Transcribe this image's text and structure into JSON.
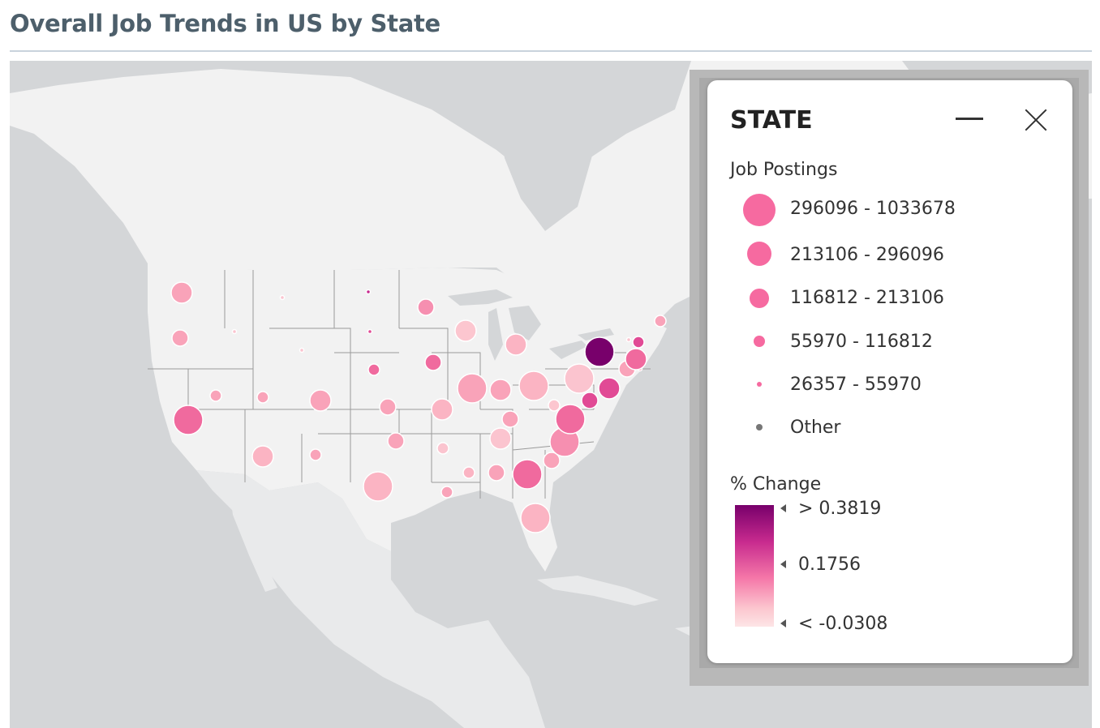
{
  "title": "Overall Job Trends in US by State",
  "legend": {
    "title": "STATE",
    "size_section": "Job Postings",
    "size_bins": [
      {
        "label": "296096 - 1033678"
      },
      {
        "label": "213106 - 296096"
      },
      {
        "label": "116812 - 213106"
      },
      {
        "label": "55970 - 116812"
      },
      {
        "label": "26357 - 55970"
      },
      {
        "label": "Other"
      }
    ],
    "color_section": "% Change",
    "color_ticks": {
      "high": "> 0.3819",
      "mid": "0.1756",
      "low": "< -0.0308"
    },
    "colors": {
      "high": "#78006b",
      "mid": "#f066a0",
      "low": "#fde5e6",
      "other": "#777777"
    },
    "minimize_icon": "minimize-icon",
    "close_icon": "close-icon"
  },
  "map": {
    "colors": {
      "ocean": "#d4d6d8",
      "land": "#f2f2f2",
      "borders": "#9a9a9a"
    },
    "bubbles": [
      {
        "state": "WA",
        "size_bin": 2,
        "color": "#f9a3b9"
      },
      {
        "state": "OR",
        "size_bin": 3,
        "color": "#f9a3b9"
      },
      {
        "state": "ID",
        "size_bin": 5,
        "color": "#fbc4cf"
      },
      {
        "state": "MT",
        "size_bin": 5,
        "color": "#fbc4cf"
      },
      {
        "state": "WY",
        "size_bin": 5,
        "color": "#fbc4cf"
      },
      {
        "state": "ND",
        "size_bin": 5,
        "color": "#c72a8e"
      },
      {
        "state": "SD",
        "size_bin": 5,
        "color": "#e14a95"
      },
      {
        "state": "NV",
        "size_bin": 4,
        "color": "#f9a3b9"
      },
      {
        "state": "CA",
        "size_bin": 1,
        "color": "#f06a9e"
      },
      {
        "state": "UT",
        "size_bin": 4,
        "color": "#f9a3b9"
      },
      {
        "state": "CO",
        "size_bin": 2,
        "color": "#f9a3b9"
      },
      {
        "state": "AZ",
        "size_bin": 2,
        "color": "#fbb4c3"
      },
      {
        "state": "NM",
        "size_bin": 4,
        "color": "#f9a3b9"
      },
      {
        "state": "NE",
        "size_bin": 4,
        "color": "#f06a9e"
      },
      {
        "state": "KS",
        "size_bin": 3,
        "color": "#f9a3b9"
      },
      {
        "state": "OK",
        "size_bin": 3,
        "color": "#f9a3b9"
      },
      {
        "state": "TX",
        "size_bin": 1,
        "color": "#fbb4c3"
      },
      {
        "state": "MN",
        "size_bin": 3,
        "color": "#f68fb0"
      },
      {
        "state": "IA",
        "size_bin": 3,
        "color": "#f06a9e"
      },
      {
        "state": "MO",
        "size_bin": 2,
        "color": "#fbb4c3"
      },
      {
        "state": "AR",
        "size_bin": 4,
        "color": "#fbc4cf"
      },
      {
        "state": "LA",
        "size_bin": 4,
        "color": "#f9a3b9"
      },
      {
        "state": "WI",
        "size_bin": 2,
        "color": "#fcc6cf"
      },
      {
        "state": "IL",
        "size_bin": 1,
        "color": "#f9a3b9"
      },
      {
        "state": "MS",
        "size_bin": 4,
        "color": "#fbb4c3"
      },
      {
        "state": "MI",
        "size_bin": 2,
        "color": "#fbb4c3"
      },
      {
        "state": "IN",
        "size_bin": 2,
        "color": "#f9a3b9"
      },
      {
        "state": "OH",
        "size_bin": 1,
        "color": "#fbb4c3"
      },
      {
        "state": "KY",
        "size_bin": 3,
        "color": "#f9a3b9"
      },
      {
        "state": "TN",
        "size_bin": 2,
        "color": "#fbc4cf"
      },
      {
        "state": "AL",
        "size_bin": 3,
        "color": "#f9a3b9"
      },
      {
        "state": "GA",
        "size_bin": 1,
        "color": "#f06a9e"
      },
      {
        "state": "FL",
        "size_bin": 1,
        "color": "#fbb4c3"
      },
      {
        "state": "SC",
        "size_bin": 3,
        "color": "#f9a3b9"
      },
      {
        "state": "NC",
        "size_bin": 1,
        "color": "#f68fb0"
      },
      {
        "state": "VA",
        "size_bin": 1,
        "color": "#f06a9e"
      },
      {
        "state": "WV",
        "size_bin": 4,
        "color": "#fcc6cf"
      },
      {
        "state": "PA",
        "size_bin": 1,
        "color": "#fbc4cf"
      },
      {
        "state": "MD",
        "size_bin": 3,
        "color": "#e14a95"
      },
      {
        "state": "DE",
        "size_bin": 5,
        "color": "#fbc4cf"
      },
      {
        "state": "NJ",
        "size_bin": 2,
        "color": "#e14a95"
      },
      {
        "state": "NY",
        "size_bin": 1,
        "color": "#78006b"
      },
      {
        "state": "CT",
        "size_bin": 3,
        "color": "#f9a3b9"
      },
      {
        "state": "RI",
        "size_bin": 5,
        "color": "#f9a3b9"
      },
      {
        "state": "MA",
        "size_bin": 2,
        "color": "#f06a9e"
      },
      {
        "state": "VT",
        "size_bin": 5,
        "color": "#fbc4cf"
      },
      {
        "state": "NH",
        "size_bin": 4,
        "color": "#e14a95"
      },
      {
        "state": "ME",
        "size_bin": 4,
        "color": "#f9a3b9"
      }
    ]
  }
}
